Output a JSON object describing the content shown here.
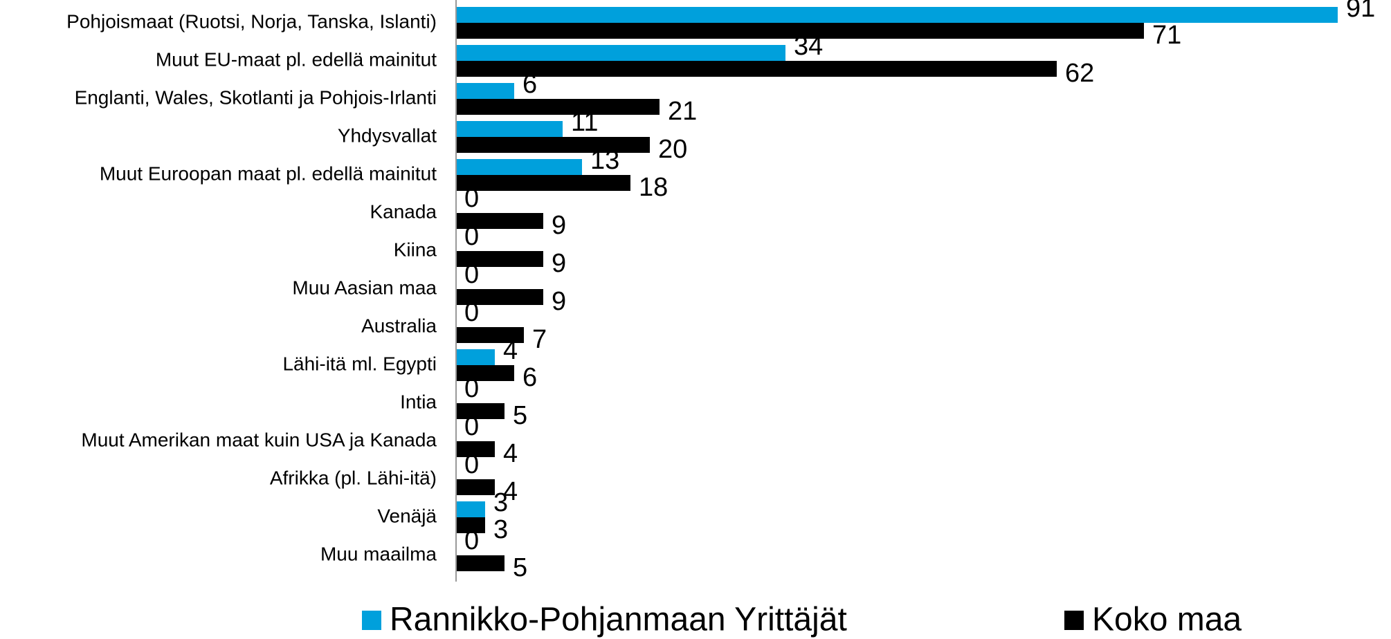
{
  "chart_data": {
    "type": "barh",
    "categories": [
      "Pohjoismaat (Ruotsi, Norja, Tanska, Islanti)",
      "Muut EU-maat pl. edellä mainitut",
      "Englanti, Wales, Skotlanti ja Pohjois-Irlanti",
      "Yhdysvallat",
      "Muut Euroopan maat pl. edellä mainitut",
      "Kanada",
      "Kiina",
      "Muu Aasian maa",
      "Australia",
      "Lähi-itä ml. Egypti",
      "Intia",
      "Muut Amerikan maat kuin USA ja Kanada",
      "Afrikka (pl. Lähi-itä)",
      "Venäjä",
      "Muu maailma"
    ],
    "series": [
      {
        "name": "Rannikko-Pohjanmaan Yrittäjät",
        "color": "#00a0dc",
        "values": [
          91,
          34,
          6,
          11,
          13,
          0,
          0,
          0,
          0,
          4,
          0,
          0,
          0,
          3,
          0
        ]
      },
      {
        "name": "Koko maa",
        "color": "#000000",
        "values": [
          71,
          62,
          21,
          20,
          18,
          9,
          9,
          9,
          7,
          6,
          5,
          4,
          4,
          3,
          5
        ]
      }
    ],
    "xlim": [
      0,
      91
    ]
  }
}
